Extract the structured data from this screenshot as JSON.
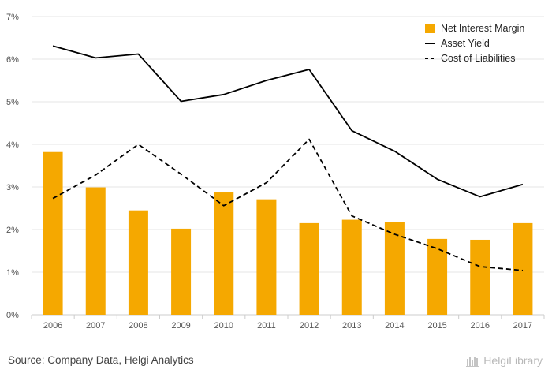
{
  "chart_data": {
    "type": "bar+line",
    "categories": [
      "2006",
      "2007",
      "2008",
      "2009",
      "2010",
      "2011",
      "2012",
      "2013",
      "2014",
      "2015",
      "2016",
      "2017"
    ],
    "y_ticks": [
      "0%",
      "1%",
      "2%",
      "3%",
      "4%",
      "5%",
      "6%",
      "7%"
    ],
    "ylim": [
      0,
      7
    ],
    "grid": "horizontal",
    "legend_position": "top-right",
    "series": [
      {
        "name": "Net Interest Margin",
        "kind": "bar",
        "color": "#f5a800",
        "values": [
          3.82,
          2.99,
          2.45,
          2.02,
          2.87,
          2.71,
          2.15,
          2.23,
          2.17,
          1.78,
          1.76,
          2.15
        ]
      },
      {
        "name": "Asset Yield",
        "kind": "line",
        "color": "#000000",
        "dash": "solid",
        "values": [
          6.31,
          6.03,
          6.12,
          5.01,
          5.17,
          5.5,
          5.76,
          4.32,
          3.84,
          3.18,
          2.77,
          3.06
        ]
      },
      {
        "name": "Cost of Liabilities",
        "kind": "line",
        "color": "#000000",
        "dash": "dashed",
        "values": [
          2.73,
          3.28,
          4.0,
          3.3,
          2.56,
          3.1,
          4.12,
          2.32,
          1.89,
          1.55,
          1.13,
          1.04
        ]
      }
    ]
  },
  "footer": {
    "source": "Source: Company Data, Helgi Analytics",
    "brand": "HelgiLibrary"
  }
}
